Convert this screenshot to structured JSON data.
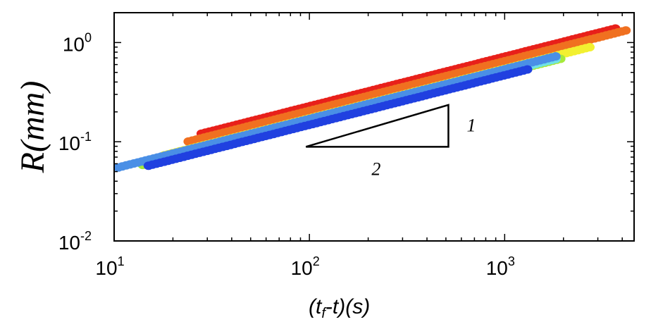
{
  "chart_data": {
    "type": "scatter",
    "x_scale": "log",
    "y_scale": "log",
    "xlim": [
      10,
      4600
    ],
    "ylim": [
      0.01,
      2.0
    ],
    "ylabel": "R(mm)",
    "xlabel_parts": [
      "(t",
      "f",
      "-t)(s)"
    ],
    "x_ticks": [
      {
        "value": 10,
        "base": "10",
        "exp": "1"
      },
      {
        "value": 100,
        "base": "10",
        "exp": "2"
      },
      {
        "value": 1000,
        "base": "10",
        "exp": "3"
      }
    ],
    "y_ticks": [
      {
        "value": 0.01,
        "base": "10",
        "exp": "-2"
      },
      {
        "value": 0.1,
        "base": "10",
        "exp": "-1"
      },
      {
        "value": 1,
        "base": "10",
        "exp": "0"
      }
    ],
    "grid": false,
    "legend": "none",
    "series": [
      {
        "color": "#e8201a",
        "x_start": 28,
        "x_end": 3800,
        "coefficient": 0.0228,
        "exponent": 0.5
      },
      {
        "color": "#f07020",
        "x_start": 24,
        "x_end": 4300,
        "coefficient": 0.0205,
        "exponent": 0.5
      },
      {
        "color": "#f2f030",
        "x_start": 18,
        "x_end": 2800,
        "coefficient": 0.0172,
        "exponent": 0.5
      },
      {
        "color": "#a6ea3a",
        "x_start": 14,
        "x_end": 2000,
        "coefficient": 0.0156,
        "exponent": 0.5
      },
      {
        "color": "#6fe0e8",
        "x_start": 20,
        "x_end": 1900,
        "coefficient": 0.016,
        "exponent": 0.5
      },
      {
        "color": "#4a8fe6",
        "x_start": 10.5,
        "x_end": 1900,
        "coefficient": 0.017,
        "exponent": 0.5
      },
      {
        "color": "#2040e0",
        "x_start": 15,
        "x_end": 1350,
        "coefficient": 0.0148,
        "exponent": 0.5
      }
    ],
    "slope_triangle": {
      "x0": 96,
      "x1": 515,
      "y0": 0.089,
      "y1": 0.235,
      "rise_label": "1",
      "run_label": "2"
    }
  }
}
